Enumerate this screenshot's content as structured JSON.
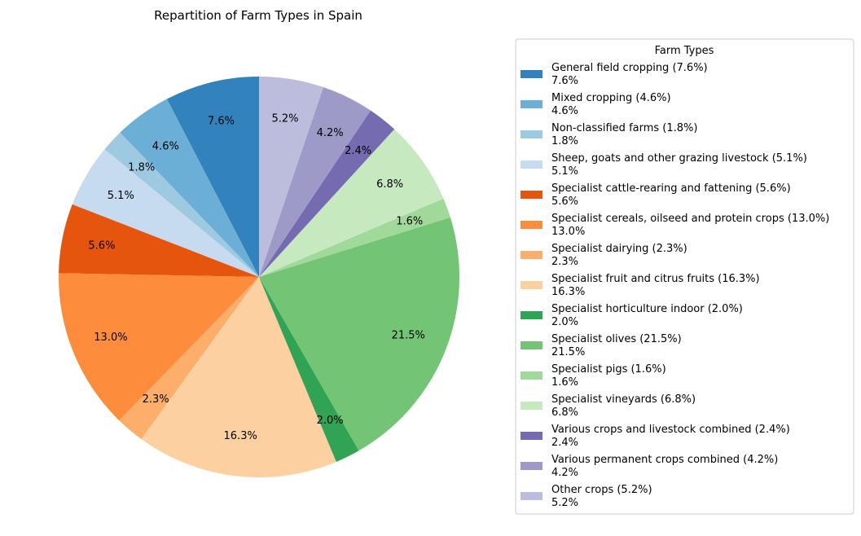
{
  "chart_data": {
    "type": "pie",
    "title": "Repartition of Farm Types in Spain",
    "legend_title": "Farm Types",
    "legend_position": "right",
    "start_angle_deg": 90,
    "direction": "counterclockwise",
    "slices": [
      {
        "label": "General field cropping (7.6%)",
        "value": 7.6,
        "pct_label": "7.6%",
        "color": "#3182bd"
      },
      {
        "label": "Mixed cropping (4.6%)",
        "value": 4.6,
        "pct_label": "4.6%",
        "color": "#6baed6"
      },
      {
        "label": "Non-classified farms (1.8%)",
        "value": 1.8,
        "pct_label": "1.8%",
        "color": "#9ecae1"
      },
      {
        "label": "Sheep, goats and other grazing livestock (5.1%)",
        "value": 5.1,
        "pct_label": "5.1%",
        "color": "#c6dbef"
      },
      {
        "label": "Specialist cattle-rearing and fattening (5.6%)",
        "value": 5.6,
        "pct_label": "5.6%",
        "color": "#e6550d"
      },
      {
        "label": "Specialist cereals, oilseed and protein crops (13.0%)",
        "value": 13.0,
        "pct_label": "13.0%",
        "color": "#fd8d3c"
      },
      {
        "label": "Specialist dairying (2.3%)",
        "value": 2.3,
        "pct_label": "2.3%",
        "color": "#fdae6b"
      },
      {
        "label": "Specialist fruit and citrus fruits (16.3%)",
        "value": 16.3,
        "pct_label": "16.3%",
        "color": "#fdd0a2"
      },
      {
        "label": "Specialist horticulture indoor (2.0%)",
        "value": 2.0,
        "pct_label": "2.0%",
        "color": "#31a354"
      },
      {
        "label": "Specialist olives (21.5%)",
        "value": 21.5,
        "pct_label": "21.5%",
        "color": "#74c476"
      },
      {
        "label": "Specialist pigs (1.6%)",
        "value": 1.6,
        "pct_label": "1.6%",
        "color": "#a1d99b"
      },
      {
        "label": "Specialist vineyards (6.8%)",
        "value": 6.8,
        "pct_label": "6.8%",
        "color": "#c7e9c0"
      },
      {
        "label": "Various crops and livestock combined (2.4%)",
        "value": 2.4,
        "pct_label": "2.4%",
        "color": "#756bb1"
      },
      {
        "label": "Various permanent crops combined (4.2%)",
        "value": 4.2,
        "pct_label": "4.2%",
        "color": "#9e9ac8"
      },
      {
        "label": "Other crops (5.2%)",
        "value": 5.2,
        "pct_label": "5.2%",
        "color": "#bcbddc"
      }
    ]
  }
}
